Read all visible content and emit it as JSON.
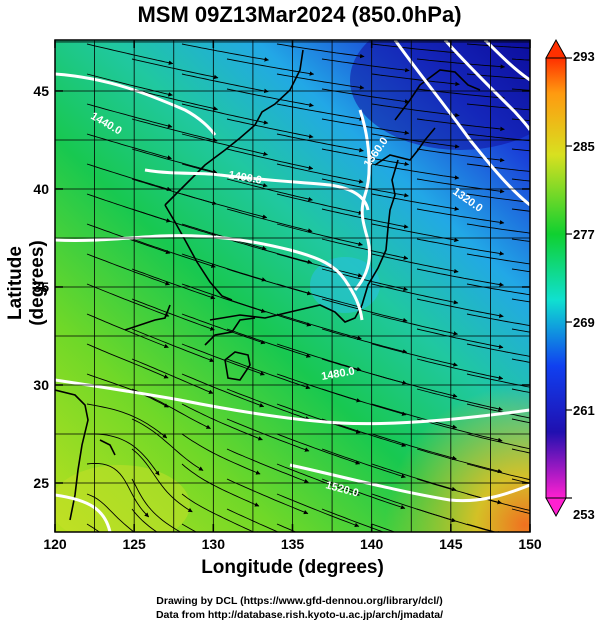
{
  "title": "MSM 09Z13Mar2024 (850.0hPa)",
  "axes": {
    "xlabel": "Longitude (degrees)",
    "ylabel": "Latitude  (degrees)",
    "x_ticks": [
      "120",
      "125",
      "130",
      "135",
      "140",
      "145",
      "150"
    ],
    "y_ticks": [
      "25",
      "30",
      "35",
      "40",
      "45"
    ],
    "x_range": [
      120,
      150
    ],
    "y_range": [
      22.5,
      47.6
    ]
  },
  "colorbar": {
    "ticks": [
      "293",
      "285",
      "277",
      "269",
      "261",
      "253"
    ],
    "range": [
      253,
      293
    ]
  },
  "contour_labels": [
    "1360.0",
    "1320.0",
    "1400.0",
    "1440.0",
    "1480.0",
    "1520.0"
  ],
  "credits": {
    "line1": "Drawing by DCL (https://www.gfd-dennou.org/library/dcl/)",
    "line2": "Data from http://database.rish.kyoto-u.ac.jp/arch/jmadata/"
  },
  "colors": {
    "cold": "#1a1fd0",
    "cool": "#22a8e6",
    "mid": "#18c850",
    "warm": "#aee21e",
    "hot": "#f08a20"
  }
}
